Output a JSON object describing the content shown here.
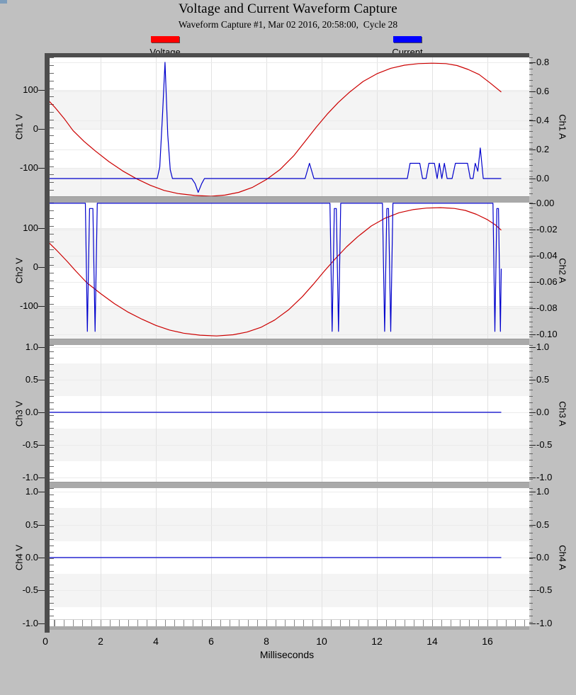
{
  "window": {
    "corner_color": "#7d9dbb"
  },
  "header": {
    "title": "Voltage and Current Waveform Capture",
    "subtitle": "Waveform Capture #1, Mar 02 2016, 20:58:00,  Cycle 28"
  },
  "legend": {
    "items": [
      {
        "label": "Voltage",
        "color": "#ff0000"
      },
      {
        "label": "Current",
        "color": "#0000ff"
      }
    ]
  },
  "x_axis": {
    "label": "Milliseconds",
    "ticks": [
      0,
      2,
      4,
      6,
      8,
      10,
      12,
      14,
      16
    ],
    "range_ms": [
      0,
      17.5
    ],
    "data_end_ms": 16.5
  },
  "chart_data": [
    {
      "name": "Ch1",
      "type": "line",
      "left_axis": {
        "label": "Ch1 V",
        "unit": "V",
        "ticks": [
          "100",
          "0",
          "-100"
        ],
        "ylim": [
          -173,
          184
        ]
      },
      "right_axis": {
        "label": "Ch1 A",
        "unit": "A",
        "ticks": [
          "0.8",
          "0.6",
          "0.4",
          "0.2",
          "0.0"
        ],
        "ylim": [
          -0.122,
          0.834
        ]
      },
      "series": [
        {
          "name": "Voltage",
          "axis": "left",
          "color": "#cc0000",
          "points": [
            [
              0,
              82
            ],
            [
              0.35,
              55
            ],
            [
              0.7,
              25
            ],
            [
              1.0,
              -4
            ],
            [
              1.4,
              -32
            ],
            [
              1.8,
              -56
            ],
            [
              2.3,
              -84
            ],
            [
              2.8,
              -108
            ],
            [
              3.3,
              -128
            ],
            [
              3.8,
              -145
            ],
            [
              4.3,
              -158
            ],
            [
              4.8,
              -166
            ],
            [
              5.4,
              -171
            ],
            [
              6.0,
              -173
            ],
            [
              6.5,
              -170
            ],
            [
              7.0,
              -163
            ],
            [
              7.5,
              -150
            ],
            [
              8.0,
              -130
            ],
            [
              8.5,
              -104
            ],
            [
              9.0,
              -68
            ],
            [
              9.4,
              -32
            ],
            [
              9.8,
              4
            ],
            [
              10.2,
              38
            ],
            [
              10.6,
              68
            ],
            [
              11.0,
              94
            ],
            [
              11.5,
              122
            ],
            [
              12.0,
              142
            ],
            [
              12.5,
              156
            ],
            [
              13.0,
              164
            ],
            [
              13.5,
              168
            ],
            [
              14.0,
              169
            ],
            [
              14.5,
              168
            ],
            [
              14.9,
              163
            ],
            [
              15.3,
              153
            ],
            [
              15.7,
              140
            ],
            [
              16.1,
              118
            ],
            [
              16.5,
              95
            ]
          ]
        },
        {
          "name": "Current",
          "axis": "right",
          "color": "#0000cc",
          "points": [
            [
              0,
              0
            ],
            [
              4.05,
              0
            ],
            [
              4.14,
              0.08
            ],
            [
              4.24,
              0.44
            ],
            [
              4.33,
              0.8
            ],
            [
              4.43,
              0.3
            ],
            [
              4.52,
              0.06
            ],
            [
              4.6,
              0
            ],
            [
              5.3,
              0
            ],
            [
              5.42,
              -0.035
            ],
            [
              5.53,
              -0.095
            ],
            [
              5.66,
              -0.035
            ],
            [
              5.76,
              0
            ],
            [
              9.4,
              0
            ],
            [
              9.56,
              0.105
            ],
            [
              9.72,
              0
            ],
            [
              13.1,
              0
            ],
            [
              13.2,
              0.105
            ],
            [
              13.55,
              0.105
            ],
            [
              13.65,
              0
            ],
            [
              13.78,
              0
            ],
            [
              13.88,
              0.105
            ],
            [
              14.08,
              0.105
            ],
            [
              14.18,
              0
            ],
            [
              14.26,
              0.105
            ],
            [
              14.35,
              0
            ],
            [
              14.44,
              0.105
            ],
            [
              14.54,
              0
            ],
            [
              14.72,
              0
            ],
            [
              14.84,
              0.105
            ],
            [
              15.28,
              0.105
            ],
            [
              15.38,
              0
            ],
            [
              15.48,
              0
            ],
            [
              15.56,
              0.105
            ],
            [
              15.65,
              0.05
            ],
            [
              15.74,
              0.21
            ],
            [
              15.85,
              0
            ],
            [
              16.5,
              0
            ]
          ]
        }
      ]
    },
    {
      "name": "Ch2",
      "type": "line",
      "left_axis": {
        "label": "Ch2 V",
        "unit": "V",
        "ticks": [
          "100",
          "0",
          "-100"
        ],
        "ylim": [
          -184,
          166
        ]
      },
      "right_axis": {
        "label": "Ch2 A",
        "unit": "A",
        "ticks": [
          "0.00",
          "-0.02",
          "-0.04",
          "-0.06",
          "-0.08",
          "-0.10"
        ],
        "ylim": [
          -0.1035,
          0.0005
        ]
      },
      "series": [
        {
          "name": "Voltage",
          "axis": "left",
          "color": "#cc0000",
          "points": [
            [
              0,
              72
            ],
            [
              0.4,
              44
            ],
            [
              0.8,
              14
            ],
            [
              1.1,
              -10
            ],
            [
              1.5,
              -40
            ],
            [
              2.0,
              -68
            ],
            [
              2.5,
              -94
            ],
            [
              3.0,
              -116
            ],
            [
              3.5,
              -134
            ],
            [
              4.0,
              -150
            ],
            [
              4.5,
              -162
            ],
            [
              5.0,
              -170
            ],
            [
              5.6,
              -175
            ],
            [
              6.2,
              -177
            ],
            [
              6.8,
              -174
            ],
            [
              7.3,
              -167
            ],
            [
              7.8,
              -155
            ],
            [
              8.3,
              -136
            ],
            [
              8.8,
              -110
            ],
            [
              9.3,
              -76
            ],
            [
              9.7,
              -44
            ],
            [
              10.1,
              -10
            ],
            [
              10.5,
              22
            ],
            [
              10.9,
              52
            ],
            [
              11.3,
              78
            ],
            [
              11.8,
              106
            ],
            [
              12.3,
              126
            ],
            [
              12.8,
              140
            ],
            [
              13.3,
              148
            ],
            [
              13.8,
              152
            ],
            [
              14.3,
              153
            ],
            [
              14.8,
              151
            ],
            [
              15.2,
              146
            ],
            [
              15.6,
              136
            ],
            [
              16.0,
              122
            ],
            [
              16.3,
              108
            ],
            [
              16.5,
              95
            ]
          ]
        },
        {
          "name": "Current",
          "axis": "right",
          "color": "#0000cc",
          "points": [
            [
              0,
              0
            ],
            [
              1.45,
              0
            ],
            [
              1.52,
              -0.098
            ],
            [
              1.6,
              -0.004
            ],
            [
              1.72,
              -0.004
            ],
            [
              1.8,
              -0.098
            ],
            [
              1.88,
              0
            ],
            [
              10.3,
              0
            ],
            [
              10.38,
              -0.098
            ],
            [
              10.46,
              -0.004
            ],
            [
              10.53,
              -0.004
            ],
            [
              10.61,
              -0.098
            ],
            [
              10.69,
              0
            ],
            [
              12.2,
              0
            ],
            [
              12.28,
              -0.098
            ],
            [
              12.36,
              -0.004
            ],
            [
              12.42,
              -0.004
            ],
            [
              12.5,
              -0.098
            ],
            [
              12.58,
              0
            ],
            [
              16.2,
              0
            ],
            [
              16.27,
              -0.098
            ],
            [
              16.34,
              -0.004
            ],
            [
              16.4,
              -0.004
            ],
            [
              16.47,
              -0.098
            ],
            [
              16.5,
              -0.05
            ]
          ]
        }
      ]
    },
    {
      "name": "Ch3",
      "type": "line",
      "left_axis": {
        "label": "Ch3 V",
        "unit": "V",
        "ticks": [
          "1.0",
          "0.5",
          "0.0",
          "-0.5",
          "-1.0"
        ],
        "ylim": [
          -1.066,
          1.034
        ]
      },
      "right_axis": {
        "label": "Ch3 A",
        "unit": "A",
        "ticks": [
          "1.0",
          "0.5",
          "0.0",
          "-0.5",
          "-1.0"
        ],
        "ylim": [
          -1.066,
          1.034
        ]
      },
      "series": [
        {
          "name": "Current",
          "axis": "right",
          "color": "#0000cc",
          "points": [
            [
              0,
              0
            ],
            [
              16.5,
              0
            ]
          ]
        }
      ]
    },
    {
      "name": "Ch4",
      "type": "line",
      "left_axis": {
        "label": "Ch4 V",
        "unit": "V",
        "ticks": [
          "1.0",
          "0.5",
          "0.0",
          "-0.5",
          "-1.0"
        ],
        "ylim": [
          -1.045,
          1.055
        ]
      },
      "right_axis": {
        "label": "Ch4 A",
        "unit": "A",
        "ticks": [
          "1.0",
          "0.5",
          "0.0",
          "-0.5",
          "-1.0"
        ],
        "ylim": [
          -1.045,
          1.055
        ]
      },
      "series": [
        {
          "name": "Current",
          "axis": "right",
          "color": "#0000cc",
          "points": [
            [
              0,
              0
            ],
            [
              16.5,
              0
            ]
          ]
        }
      ]
    }
  ]
}
